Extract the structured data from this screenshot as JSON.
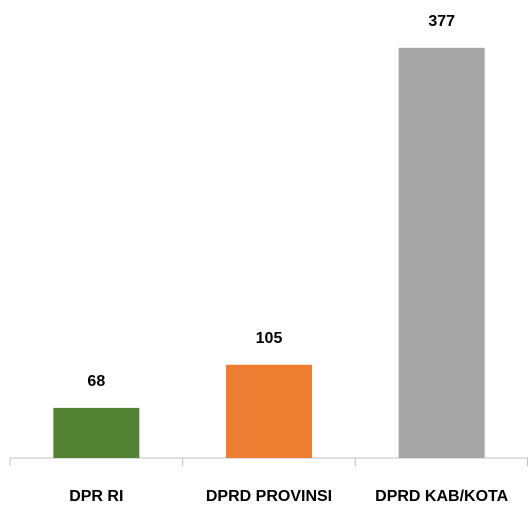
{
  "chart_data": {
    "type": "bar",
    "categories": [
      "DPR RI",
      "DPRD PROVINSI",
      "DPRD KAB/KOTA"
    ],
    "values": [
      68,
      105,
      377
    ],
    "colors": [
      "#548235",
      "#ed7d31",
      "#a5a5a5"
    ],
    "ylim": [
      25,
      400
    ]
  }
}
